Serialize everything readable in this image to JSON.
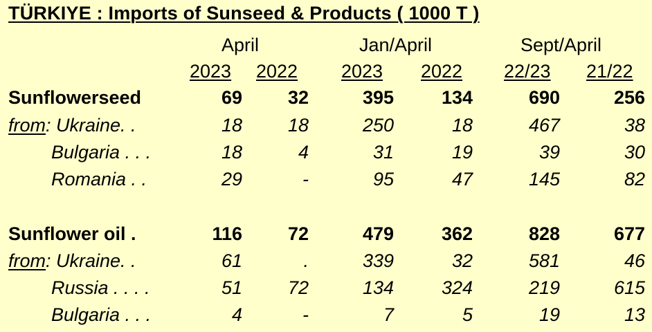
{
  "title": "TÜRKIYE :  Imports of Sunseed & Products  ( 1000 T )",
  "groups": [
    "April",
    "Jan/April",
    "Sept/April"
  ],
  "years": [
    "2023",
    "2022",
    "2023",
    "2022",
    "22/23",
    "21/22"
  ],
  "rows": [
    {
      "label": "Sunflowerseed",
      "values": [
        "69",
        "32",
        "395",
        "134",
        "690",
        "256"
      ]
    },
    {
      "from": "from",
      "label": ": Ukraine. .",
      "values": [
        "18",
        "18",
        "250",
        "18",
        "467",
        "38"
      ]
    },
    {
      "label": "Bulgaria . . .",
      "values": [
        "18",
        "4",
        "31",
        "19",
        "39",
        "30"
      ]
    },
    {
      "label": "Romania  . .",
      "values": [
        "29",
        "-",
        "95",
        "47",
        "145",
        "82"
      ]
    },
    {
      "label": "Sunflower oil .",
      "values": [
        "116",
        "72",
        "479",
        "362",
        "828",
        "677"
      ]
    },
    {
      "from": "from",
      "label": ": Ukraine. .",
      "values": [
        "61",
        ".",
        "339",
        "32",
        "581",
        "46"
      ]
    },
    {
      "label": "Russia . . . .",
      "values": [
        "51",
        "72",
        "134",
        "324",
        "219",
        "615"
      ]
    },
    {
      "label": "Bulgaria . . .",
      "values": [
        "4",
        "-",
        "7",
        "5",
        "19",
        "13"
      ]
    }
  ]
}
